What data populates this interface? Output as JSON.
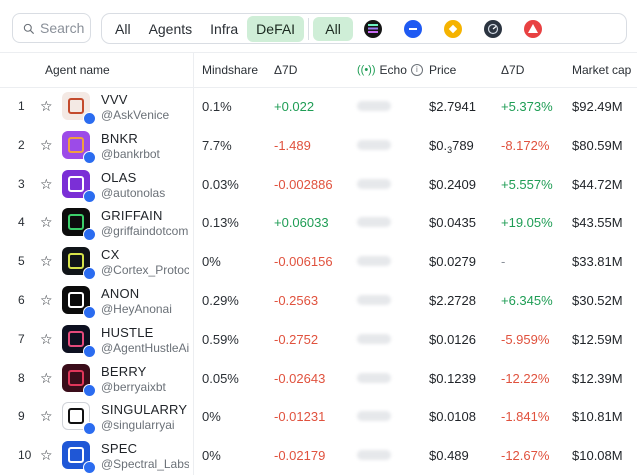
{
  "search": {
    "placeholder": "Search"
  },
  "category_tabs": [
    {
      "label": "All",
      "active": false
    },
    {
      "label": "Agents",
      "active": false
    },
    {
      "label": "Infra",
      "active": false
    },
    {
      "label": "DeFAI",
      "active": true
    }
  ],
  "chain_filters": [
    {
      "label": "All",
      "active": true
    },
    {
      "icon": "solana-icon",
      "color": "#151515"
    },
    {
      "icon": "base-icon",
      "color": "#1f5af2"
    },
    {
      "icon": "bnb-icon",
      "color": "#f5b300"
    },
    {
      "icon": "chain-speed-icon",
      "color": "#2b3440"
    },
    {
      "icon": "avalanche-icon",
      "color": "#e84142"
    }
  ],
  "table": {
    "headers": {
      "agent_name": "Agent name",
      "mindshare": "Mindshare",
      "mindshare_d7": "Δ7D",
      "echo": "Echo",
      "price": "Price",
      "price_d7": "Δ7D",
      "market_cap": "Market cap"
    },
    "rows": [
      {
        "rank": "1",
        "name": "VVV",
        "handle": "@AskVenice",
        "mindshare": "0.1%",
        "mindshare_d7": "+0.022",
        "price": "$2.7941",
        "price_d7": "+5.373%",
        "market_cap": "$92.49M",
        "avatar_color": "#f4e9e4",
        "glyph_color": "#c44a2c"
      },
      {
        "rank": "2",
        "name": "BNKR",
        "handle": "@bankrbot",
        "mindshare": "7.7%",
        "mindshare_d7": "-1.489",
        "price_prefix": "$0.",
        "price_sub": "3",
        "price_rest": "789",
        "price_d7": "-8.172%",
        "market_cap": "$80.59M",
        "avatar_color": "#9c4be8",
        "glyph_color": "#f0a040"
      },
      {
        "rank": "3",
        "name": "OLAS",
        "handle": "@autonolas",
        "mindshare": "0.03%",
        "mindshare_d7": "-0.002886",
        "price": "$0.2409",
        "price_d7": "+5.557%",
        "market_cap": "$44.72M",
        "avatar_color": "#7b2fd6",
        "glyph_color": "#ffffff"
      },
      {
        "rank": "4",
        "name": "GRIFFAIN",
        "handle": "@griffaindotcom",
        "mindshare": "0.13%",
        "mindshare_d7": "+0.06033",
        "price": "$0.0435",
        "price_d7": "+19.05%",
        "market_cap": "$43.55M",
        "avatar_color": "#0c0c0c",
        "glyph_color": "#3ccf6a"
      },
      {
        "rank": "5",
        "name": "CX",
        "handle": "@Cortex_Protocol",
        "mindshare": "0%",
        "mindshare_d7": "-0.006156",
        "price": "$0.0279",
        "price_d7": "-",
        "market_cap": "$33.81M",
        "avatar_color": "#101418",
        "glyph_color": "#d6e34a"
      },
      {
        "rank": "6",
        "name": "ANON",
        "handle": "@HeyAnonai",
        "mindshare": "0.29%",
        "mindshare_d7": "-0.2563",
        "price": "$2.2728",
        "price_d7": "+6.345%",
        "market_cap": "$30.52M",
        "avatar_color": "#0b0b0b",
        "glyph_color": "#ffffff"
      },
      {
        "rank": "7",
        "name": "HUSTLE",
        "handle": "@AgentHustleAi",
        "mindshare": "0.59%",
        "mindshare_d7": "-0.2752",
        "price": "$0.0126",
        "price_d7": "-5.959%",
        "market_cap": "$12.59M",
        "avatar_color": "#0d1020",
        "glyph_color": "#e44a7c"
      },
      {
        "rank": "8",
        "name": "BERRY",
        "handle": "@berryaixbt",
        "mindshare": "0.05%",
        "mindshare_d7": "-0.02643",
        "price": "$0.1239",
        "price_d7": "-12.22%",
        "market_cap": "$12.39M",
        "avatar_color": "#3a0d1a",
        "glyph_color": "#e0365a"
      },
      {
        "rank": "9",
        "name": "SINGULARRY",
        "handle": "@singularryai",
        "mindshare": "0%",
        "mindshare_d7": "-0.01231",
        "price": "$0.0108",
        "price_d7": "-1.841%",
        "market_cap": "$10.81M",
        "avatar_color": "#ffffff",
        "glyph_color": "#111111"
      },
      {
        "rank": "10",
        "name": "SPEC",
        "handle": "@Spectral_Labs",
        "mindshare": "0%",
        "mindshare_d7": "-0.02179",
        "price": "$0.489",
        "price_d7": "-12.67%",
        "market_cap": "$10.08M",
        "avatar_color": "#1f57d6",
        "glyph_color": "#ffffff"
      }
    ]
  },
  "colors": {
    "positive": "#1f9d55",
    "negative": "#e0523e",
    "accent": "#cfeed7"
  }
}
